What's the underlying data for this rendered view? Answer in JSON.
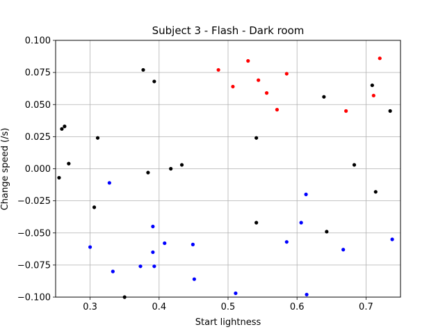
{
  "chart_data": {
    "type": "scatter",
    "title": "Subject 3 - Flash - Dark room",
    "xlabel": "Start lightness",
    "ylabel": "Change speed (/s)",
    "xlim": [
      0.25,
      0.75
    ],
    "ylim": [
      -0.1,
      0.1
    ],
    "xticks": [
      0.3,
      0.4,
      0.5,
      0.6,
      0.7
    ],
    "xtick_labels": [
      "0.3",
      "0.4",
      "0.5",
      "0.6",
      "0.7"
    ],
    "yticks": [
      -0.1,
      -0.075,
      -0.05,
      -0.025,
      0.0,
      0.025,
      0.05,
      0.075,
      0.1
    ],
    "ytick_labels": [
      "−0.100",
      "−0.075",
      "−0.050",
      "−0.025",
      "0.000",
      "0.025",
      "0.050",
      "0.075",
      "0.100"
    ],
    "grid": true,
    "series": [
      {
        "color": "#000000",
        "points": [
          [
            0.255,
            -0.007
          ],
          [
            0.259,
            0.031
          ],
          [
            0.263,
            0.033
          ],
          [
            0.269,
            0.004
          ],
          [
            0.306,
            -0.03
          ],
          [
            0.311,
            0.024
          ],
          [
            0.377,
            0.077
          ],
          [
            0.384,
            -0.003
          ],
          [
            0.393,
            0.068
          ],
          [
            0.417,
            0.0
          ],
          [
            0.433,
            0.003
          ],
          [
            0.541,
            0.024
          ],
          [
            0.541,
            -0.042
          ],
          [
            0.639,
            0.056
          ],
          [
            0.643,
            -0.049
          ],
          [
            0.683,
            0.003
          ],
          [
            0.709,
            0.065
          ],
          [
            0.714,
            -0.018
          ],
          [
            0.735,
            0.045
          ],
          [
            0.35,
            -0.1
          ]
        ]
      },
      {
        "color": "#ff0000",
        "points": [
          [
            0.486,
            0.077
          ],
          [
            0.507,
            0.064
          ],
          [
            0.529,
            0.084
          ],
          [
            0.544,
            0.069
          ],
          [
            0.556,
            0.059
          ],
          [
            0.571,
            0.046
          ],
          [
            0.585,
            0.074
          ],
          [
            0.671,
            0.045
          ],
          [
            0.711,
            0.057
          ],
          [
            0.72,
            0.086
          ]
        ]
      },
      {
        "color": "#0000ff",
        "points": [
          [
            0.3,
            -0.061
          ],
          [
            0.328,
            -0.011
          ],
          [
            0.333,
            -0.08
          ],
          [
            0.373,
            -0.076
          ],
          [
            0.391,
            -0.045
          ],
          [
            0.391,
            -0.065
          ],
          [
            0.393,
            -0.076
          ],
          [
            0.408,
            -0.058
          ],
          [
            0.449,
            -0.059
          ],
          [
            0.451,
            -0.086
          ],
          [
            0.511,
            -0.097
          ],
          [
            0.585,
            -0.057
          ],
          [
            0.606,
            -0.042
          ],
          [
            0.613,
            -0.02
          ],
          [
            0.614,
            -0.098
          ],
          [
            0.667,
            -0.063
          ],
          [
            0.738,
            -0.055
          ]
        ]
      }
    ]
  }
}
